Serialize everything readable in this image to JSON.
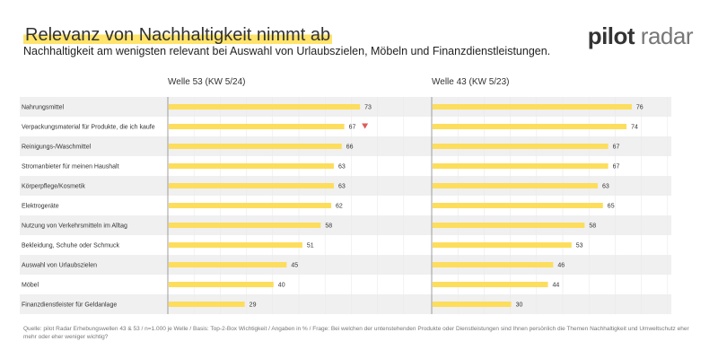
{
  "header": {
    "title": "Relevanz von Nachhaltigkeit nimmt ab",
    "subtitle": "Nachhaltigkeit am wenigsten relevant bei Auswahl von Urlaubszielen, Möbeln und Finanzdienstleistungen.",
    "logo_text": "pilot radar"
  },
  "footer": {
    "source": "Quelle: pilot Radar Erhebungswellen 43 & 53 / n=1.000 je Welle / Basis: Top-2-Box Wichtigkeit / Angaben in % / Frage: Bei welchen der untenstehenden Produkte oder Dienstleistungen sind Ihnen persönlich die Themen Nachhaltigkeit und Umweltschutz eher mehr oder eher weniger wichtig?"
  },
  "chart_data": {
    "type": "bar",
    "orientation": "horizontal",
    "categories": [
      "Nahrungsmittel",
      "Verpackungsmaterial für Produkte, die ich kaufe",
      "Reinigungs-/Waschmittel",
      "Stromanbieter für meinen Haushalt",
      "Körperpflege/Kosmetik",
      "Elektrogeräte",
      "Nutzung von Verkehrsmitteln im Alltag",
      "Bekleidung, Schuhe oder Schmuck",
      "Auswahl von Urlaubszielen",
      "Möbel",
      "Finanzdienstleister für Geldanlage"
    ],
    "series": [
      {
        "name": "Welle 53 (KW 5/24)",
        "values": [
          73,
          67,
          66,
          63,
          63,
          62,
          58,
          51,
          45,
          40,
          29
        ],
        "markers": {
          "1": "decrease"
        }
      },
      {
        "name": "Welle 43 (KW 5/23)",
        "values": [
          76,
          74,
          67,
          67,
          63,
          65,
          58,
          53,
          46,
          44,
          30
        ]
      }
    ],
    "xlim": [
      0,
      100
    ],
    "grid": true,
    "colors": {
      "bar": "#fddd5c",
      "stripe": "#f0f0f0",
      "decrease_marker": "#e05a5a",
      "axis": "#888888"
    }
  }
}
